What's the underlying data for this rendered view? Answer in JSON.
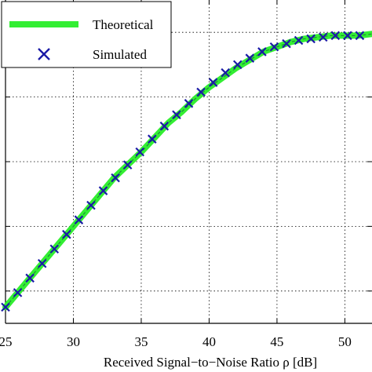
{
  "chart_data": {
    "type": "line",
    "xlabel": "Received Signal−to−Noise Ratio ρ [dB]",
    "ylabel": "",
    "title": "",
    "xlim": [
      25,
      52
    ],
    "ylim": [
      0,
      1
    ],
    "xticks": [
      25,
      30,
      35,
      40,
      45,
      50
    ],
    "xtick_labels": [
      "25",
      "30",
      "35",
      "40",
      "45",
      "50"
    ],
    "yticks": [
      0.1,
      0.3,
      0.5,
      0.7,
      0.9
    ],
    "grid": true,
    "legend_position": "top-left",
    "series": [
      {
        "name": "Theoretical",
        "style": "thick-line",
        "color": "#33ee33",
        "x": [
          25,
          26,
          27,
          28,
          29,
          30,
          31,
          32,
          33,
          34,
          35,
          36,
          37,
          38,
          39,
          40,
          41,
          42,
          43,
          44,
          45,
          46,
          47,
          48,
          49,
          50,
          51,
          52
        ],
        "y": [
          0.05,
          0.1,
          0.15,
          0.2,
          0.25,
          0.3,
          0.35,
          0.4,
          0.45,
          0.49,
          0.53,
          0.575,
          0.62,
          0.655,
          0.695,
          0.73,
          0.76,
          0.79,
          0.815,
          0.84,
          0.855,
          0.87,
          0.88,
          0.885,
          0.89,
          0.89,
          0.89,
          0.895
        ]
      },
      {
        "name": "Simulated",
        "style": "x-marker",
        "color": "#1a1aa6",
        "x": [
          25,
          25.9,
          26.8,
          27.7,
          28.6,
          29.5,
          30.4,
          31.3,
          32.2,
          33.1,
          34,
          34.9,
          35.8,
          36.7,
          37.6,
          38.5,
          39.4,
          40.3,
          41.2,
          42.1,
          43,
          43.9,
          44.8,
          45.7,
          46.6,
          47.5,
          48.4,
          49.3,
          50.2,
          51.1
        ],
        "y": [
          0.05,
          0.095,
          0.14,
          0.185,
          0.23,
          0.275,
          0.32,
          0.365,
          0.41,
          0.45,
          0.49,
          0.53,
          0.57,
          0.61,
          0.645,
          0.68,
          0.715,
          0.745,
          0.775,
          0.8,
          0.82,
          0.84,
          0.855,
          0.865,
          0.875,
          0.88,
          0.885,
          0.89,
          0.89,
          0.89
        ]
      }
    ]
  }
}
